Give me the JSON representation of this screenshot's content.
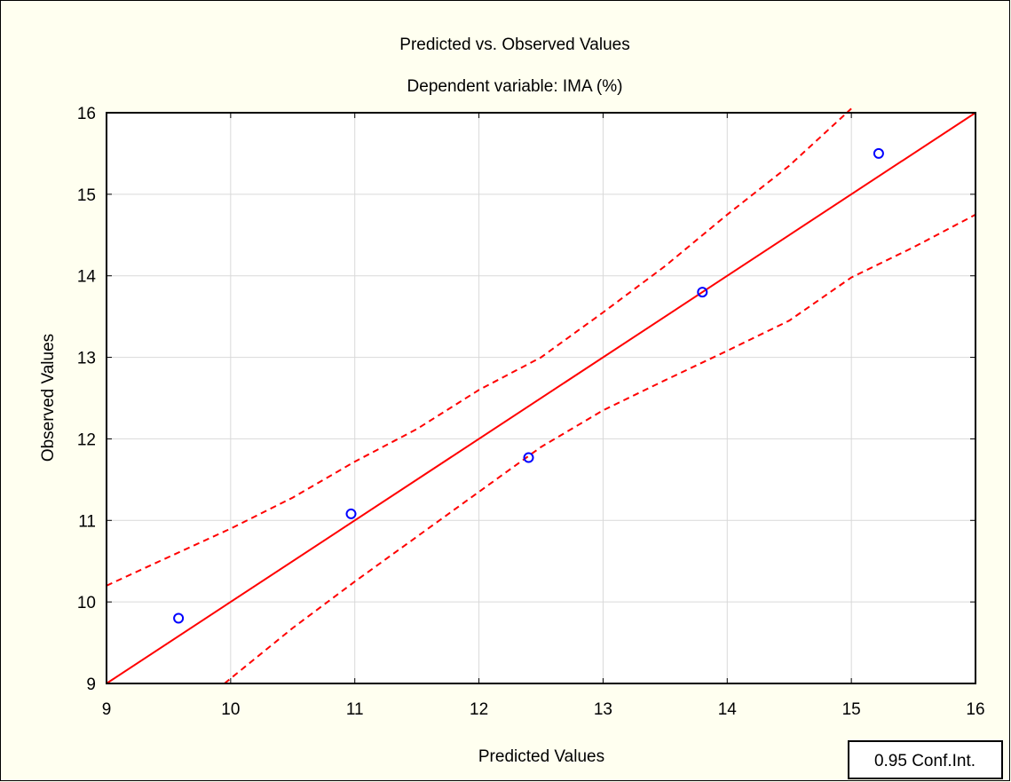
{
  "chart_data": {
    "type": "scatter",
    "title": "Predicted vs. Observed Values",
    "subtitle": "Dependent variable: IMA (%)",
    "xlabel": "Predicted Values",
    "ylabel": "Observed Values",
    "xlim": [
      9,
      16
    ],
    "ylim": [
      9,
      16
    ],
    "x_ticks": [
      "9",
      "10",
      "11",
      "12",
      "13",
      "14",
      "15",
      "16"
    ],
    "y_ticks": [
      "9",
      "10",
      "11",
      "12",
      "13",
      "14",
      "15",
      "16"
    ],
    "grid": true,
    "legend": {
      "label": "0.95 Conf.Int.",
      "position": "bottom-right"
    },
    "points": [
      {
        "x": 9.58,
        "y": 9.8
      },
      {
        "x": 10.97,
        "y": 11.08
      },
      {
        "x": 12.4,
        "y": 11.77
      },
      {
        "x": 13.8,
        "y": 13.8
      },
      {
        "x": 15.22,
        "y": 15.5
      }
    ],
    "fit_line": [
      [
        9,
        9
      ],
      [
        16,
        16
      ]
    ],
    "conf_upper": [
      [
        9.0,
        10.2
      ],
      [
        9.5,
        10.55
      ],
      [
        10.0,
        10.9
      ],
      [
        10.5,
        11.28
      ],
      [
        11.0,
        11.72
      ],
      [
        11.5,
        12.12
      ],
      [
        12.0,
        12.6
      ],
      [
        12.5,
        13.0
      ],
      [
        13.0,
        13.55
      ],
      [
        13.5,
        14.12
      ],
      [
        14.0,
        14.75
      ],
      [
        14.5,
        15.35
      ],
      [
        15.0,
        16.05
      ]
    ],
    "conf_lower": [
      [
        9.95,
        9.0
      ],
      [
        10.5,
        9.68
      ],
      [
        11.0,
        10.25
      ],
      [
        11.5,
        10.8
      ],
      [
        12.0,
        11.35
      ],
      [
        12.5,
        11.9
      ],
      [
        13.0,
        12.35
      ],
      [
        13.5,
        12.72
      ],
      [
        14.0,
        13.08
      ],
      [
        14.5,
        13.45
      ],
      [
        15.0,
        13.98
      ],
      [
        15.5,
        14.35
      ],
      [
        16.0,
        14.75
      ]
    ],
    "colors": {
      "background": "#fffff0",
      "points": "#0000ff",
      "lines": "#ff0000",
      "grid": "#d9d9d9"
    }
  }
}
